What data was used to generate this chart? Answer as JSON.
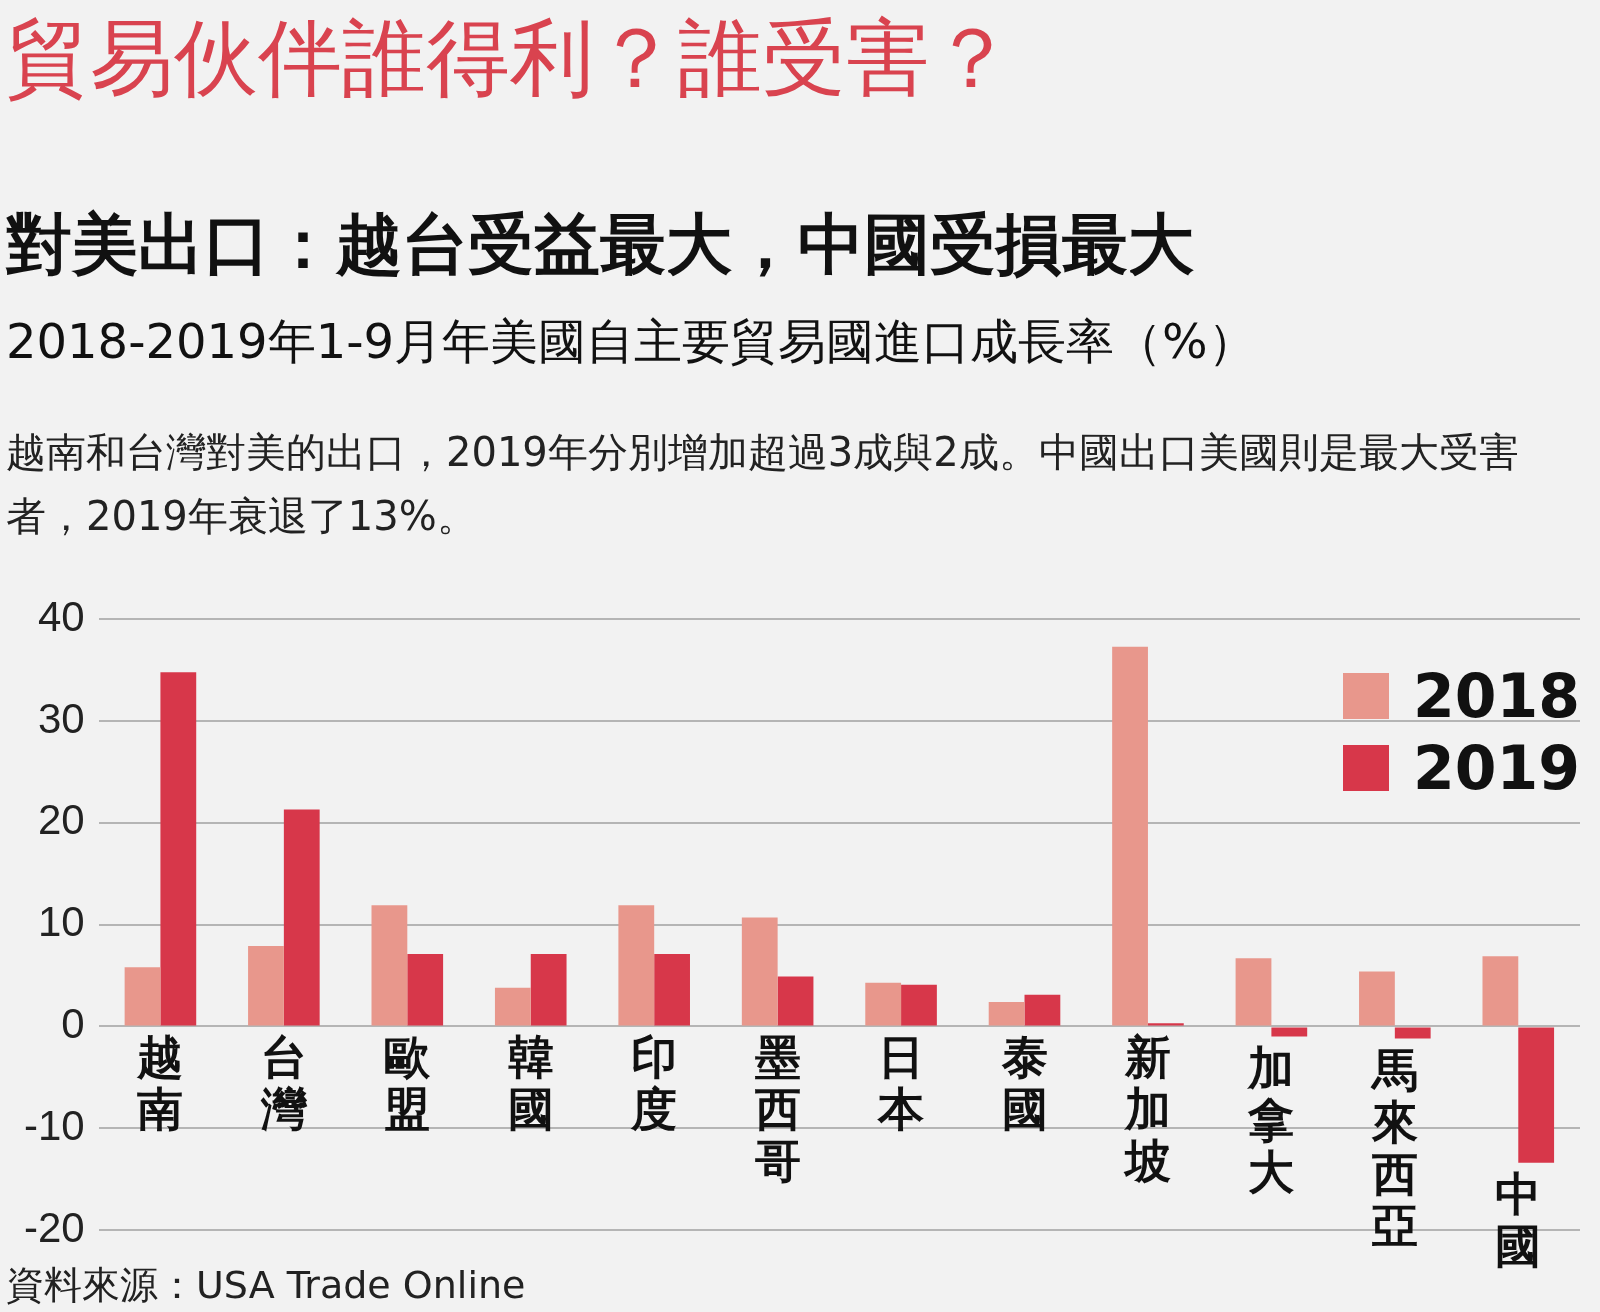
{
  "chart_data": {
    "type": "bar",
    "title": "貿易伙伴誰得利？誰受害？",
    "subtitle": "對美出口：越台受益最大，中國受損最大",
    "annotations": [
      "2018-2019年1-9月年美國自主要貿易國進口成長率（%）",
      "越南和台灣對美的出口，2019年分別增加超過3成與2成。中國出口美國則是最大受害者，2019年衰退了13%。",
      "資料來源：USA Trade Online"
    ],
    "categories": [
      "越南",
      "台灣",
      "歐盟",
      "韓國",
      "印度",
      "墨西哥",
      "日本",
      "泰國",
      "新加坡",
      "加拿大",
      "馬來西亞",
      "中國"
    ],
    "series": [
      {
        "name": "2018",
        "color": "#e8978c",
        "values": [
          5.8,
          7.9,
          11.9,
          3.8,
          11.9,
          10.7,
          4.3,
          2.4,
          37.3,
          6.7,
          5.4,
          6.9
        ]
      },
      {
        "name": "2019",
        "color": "#d7374a",
        "values": [
          34.8,
          21.3,
          7.1,
          7.1,
          7.1,
          4.9,
          4.1,
          3.1,
          0.3,
          -1.0,
          -1.2,
          -13.4
        ]
      }
    ],
    "ylim": [
      -20,
      40
    ],
    "yticks": [
      -20,
      -10,
      0,
      10,
      20,
      30,
      40
    ],
    "grid": "y",
    "legend": "top right"
  }
}
